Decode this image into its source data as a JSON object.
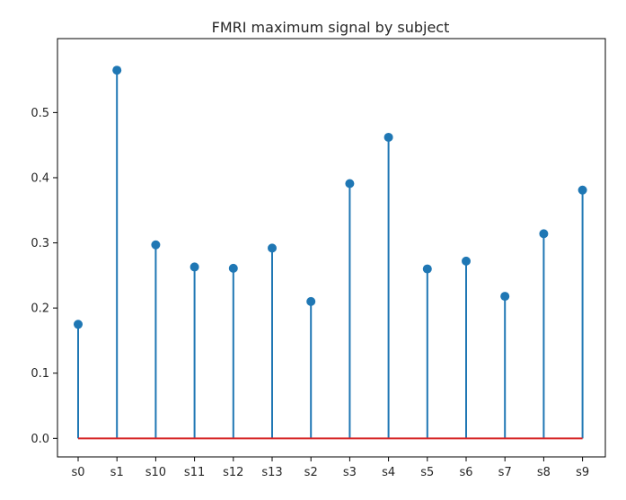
{
  "chart_data": {
    "type": "stem",
    "title": "FMRI maximum signal by subject",
    "xlabel": "",
    "ylabel": "",
    "categories": [
      "s0",
      "s1",
      "s10",
      "s11",
      "s12",
      "s13",
      "s2",
      "s3",
      "s4",
      "s5",
      "s6",
      "s7",
      "s8",
      "s9"
    ],
    "values": [
      0.175,
      0.565,
      0.297,
      0.263,
      0.261,
      0.292,
      0.21,
      0.391,
      0.462,
      0.26,
      0.272,
      0.218,
      0.314,
      0.381
    ],
    "ylim": [
      -0.0285,
      0.6135
    ],
    "yticks": [
      0.0,
      0.1,
      0.2,
      0.3,
      0.4,
      0.5
    ],
    "ytick_labels": [
      "0.0",
      "0.1",
      "0.2",
      "0.3",
      "0.4",
      "0.5"
    ],
    "grid": false,
    "colors": {
      "stem": "#1f77b4",
      "marker": "#1f77b4",
      "baseline": "#d62728",
      "axes": "#000000",
      "text": "#262626"
    }
  }
}
